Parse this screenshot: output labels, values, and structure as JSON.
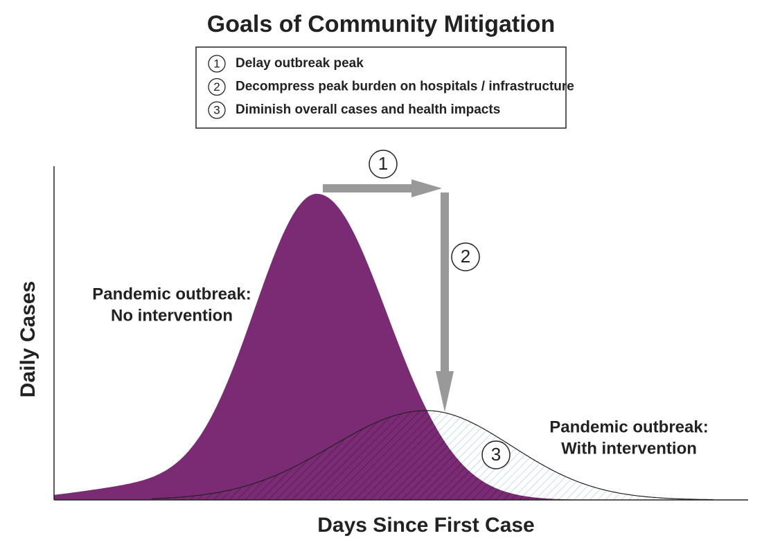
{
  "title": "Goals of Community Mitigation",
  "goals": [
    {
      "number": "1",
      "text": "Delay outbreak peak"
    },
    {
      "number": "2",
      "text": "Decompress peak burden on hospitals / infrastructure"
    },
    {
      "number": "3",
      "text": "Diminish overall cases and health impacts"
    }
  ],
  "axes": {
    "x_label": "Days Since First Case",
    "y_label": "Daily Cases"
  },
  "curves": [
    {
      "label_lines": [
        "Pandemic outbreak:",
        "No intervention"
      ]
    },
    {
      "label_lines": [
        "Pandemic outbreak:",
        "With intervention"
      ]
    }
  ],
  "markers": [
    "1",
    "2",
    "3"
  ]
}
